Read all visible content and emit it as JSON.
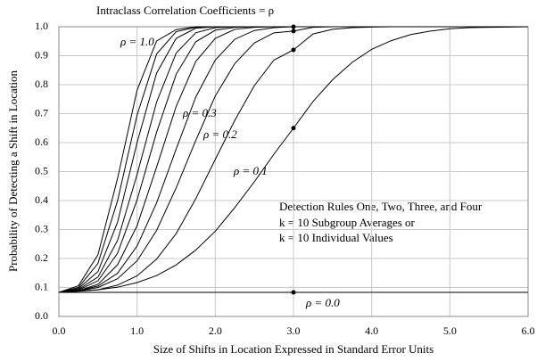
{
  "chart_data": {
    "type": "line",
    "title": "Intraclass Correlation Coefficients  = ρ",
    "x_label": "Size of Shifts in Location Expressed in Standard Error Units",
    "y_label": "Probability of Detecting a Shift in Location",
    "annotation": [
      "Detection Rules One, Two, Three, and Four",
      "k = 10 Subgroup Averages or",
      "k = 10 Individual Values"
    ],
    "x": [
      0,
      0.25,
      0.5,
      0.75,
      1,
      1.25,
      1.5,
      1.75,
      2,
      2.25,
      2.5,
      2.75,
      3,
      3.25,
      3.5,
      3.75,
      4,
      4.25,
      4.5,
      4.75,
      5,
      5.25,
      5.5,
      5.75,
      6
    ],
    "series": [
      {
        "name": "ρ = 1.0",
        "color": "#000000",
        "values": [
          0.083,
          0.106,
          0.213,
          0.476,
          0.781,
          0.951,
          0.99,
          1,
          1,
          1,
          1,
          1,
          1,
          1,
          1,
          1,
          1,
          1,
          1,
          1,
          1,
          1,
          1,
          1,
          1
        ]
      },
      {
        "color": "#000000",
        "values": [
          0.083,
          0.1,
          0.183,
          0.399,
          0.695,
          0.906,
          0.983,
          0.998,
          1,
          1,
          1,
          1,
          1,
          1,
          1,
          1,
          1,
          1,
          1,
          1,
          1,
          1,
          1,
          1,
          1
        ]
      },
      {
        "color": "#000000",
        "values": [
          0.083,
          0.096,
          0.155,
          0.325,
          0.6,
          0.84,
          0.96,
          0.995,
          1,
          1,
          1,
          1,
          1,
          1,
          1,
          1,
          1,
          1,
          1,
          1,
          1,
          1,
          1,
          1,
          1
        ]
      },
      {
        "color": "#000000",
        "values": [
          0.083,
          0.093,
          0.136,
          0.262,
          0.49,
          0.74,
          0.909,
          0.979,
          0.997,
          1,
          1,
          1,
          1,
          1,
          1,
          1,
          1,
          1,
          1,
          1,
          1,
          1,
          1,
          1,
          1
        ]
      },
      {
        "color": "#000000",
        "values": [
          0.083,
          0.091,
          0.123,
          0.218,
          0.402,
          0.636,
          0.836,
          0.948,
          0.988,
          0.998,
          1,
          1,
          1,
          1,
          1,
          1,
          1,
          1,
          1,
          1,
          1,
          1,
          1,
          1,
          1
        ]
      },
      {
        "color": "#000000",
        "values": [
          0.083,
          0.089,
          0.111,
          0.178,
          0.313,
          0.516,
          0.725,
          0.88,
          0.96,
          0.991,
          0.998,
          1,
          1,
          1,
          1,
          1,
          1,
          1,
          1,
          1,
          1,
          1,
          1,
          1,
          1
        ]
      },
      {
        "color": "#000000",
        "values": [
          0.083,
          0.089,
          0.105,
          0.149,
          0.243,
          0.392,
          0.578,
          0.757,
          0.885,
          0.957,
          0.987,
          0.997,
          1,
          1,
          1,
          1,
          1,
          1,
          1,
          1,
          1,
          1,
          1,
          1,
          1
        ]
      },
      {
        "name": "ρ = 0.3",
        "color": "#000000",
        "values": [
          0.083,
          0.088,
          0.1,
          0.13,
          0.192,
          0.297,
          0.444,
          0.607,
          0.761,
          0.873,
          0.944,
          0.979,
          0.985,
          0.998,
          1,
          1,
          1,
          1,
          1,
          1,
          1,
          1,
          1,
          1,
          1
        ]
      },
      {
        "name": "ρ = 0.2",
        "color": "#000000",
        "values": [
          0.083,
          0.087,
          0.092,
          0.108,
          0.14,
          0.198,
          0.286,
          0.406,
          0.542,
          0.677,
          0.797,
          0.885,
          0.92,
          0.975,
          0.991,
          0.997,
          0.999,
          1,
          1,
          1,
          1,
          1,
          1,
          1,
          1
        ]
      },
      {
        "name": "ρ = 0.1",
        "color": "#000000",
        "values": [
          0.083,
          0.088,
          0.092,
          0.101,
          0.117,
          0.141,
          0.178,
          0.229,
          0.294,
          0.376,
          0.465,
          0.56,
          0.65,
          0.742,
          0.817,
          0.877,
          0.922,
          0.952,
          0.973,
          0.985,
          0.993,
          0.997,
          0.998,
          0.999,
          1
        ]
      },
      {
        "name": "ρ = 0.0",
        "color": "#000000",
        "values": [
          0.083,
          0.083,
          0.083,
          0.083,
          0.083,
          0.083,
          0.083,
          0.083,
          0.083,
          0.083,
          0.083,
          0.083,
          0.083,
          0.083,
          0.083,
          0.083,
          0.083,
          0.083,
          0.083,
          0.083,
          0.083,
          0.083,
          0.083,
          0.083,
          0.083
        ]
      }
    ],
    "xlim": [
      0,
      6
    ],
    "xticks": [
      {
        "value": 0,
        "label": "0.0"
      },
      {
        "value": 1,
        "label": "1.0"
      },
      {
        "value": 2,
        "label": "2.0"
      },
      {
        "value": 3,
        "label": "3.0"
      },
      {
        "value": 4,
        "label": "4.0"
      },
      {
        "value": 5,
        "label": "5.0"
      },
      {
        "value": 6,
        "label": "6.0"
      }
    ],
    "ylim": [
      0,
      1
    ],
    "yticks": [
      {
        "value": 0,
        "label": "0.0"
      },
      0.1,
      0.2,
      0.3,
      0.4,
      0.5,
      0.6,
      0.7,
      0.8,
      0.9,
      {
        "value": 1,
        "label": "1.0"
      }
    ],
    "grid": true
  }
}
